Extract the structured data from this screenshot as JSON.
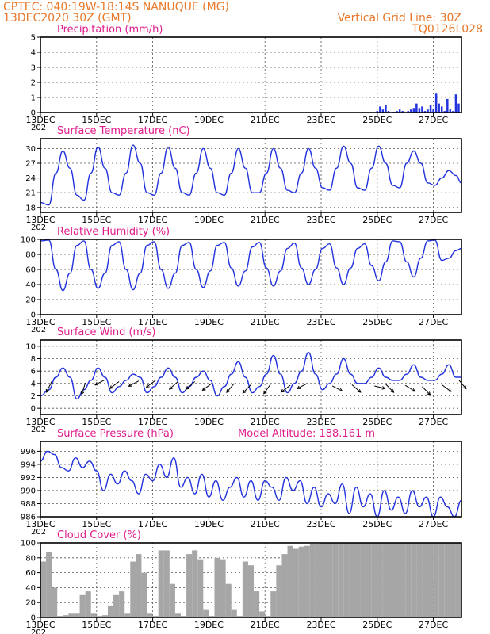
{
  "header": {
    "line1": "CPTEC:   040:19W-18:14S   NANUQUE (MG)",
    "line2": "13DEC2020 30Z (GMT)",
    "vgrid_label": "Vertical Grid Line: 30Z",
    "code": "TQ0126L028"
  },
  "x_ticks": [
    "13DEC",
    "15DEC",
    "17DEC",
    "19DEC",
    "21DEC",
    "23DEC",
    "25DEC",
    "27DEC"
  ],
  "x_tick_positions_days": [
    0,
    2,
    4,
    6,
    8,
    10,
    12,
    14
  ],
  "x_range_days": [
    0,
    15
  ],
  "year_fragment": "202",
  "colors": {
    "line": "#2233dd",
    "bar": "#2233dd",
    "cloud": "#a6a6a6",
    "title": "#e01c8c",
    "header": "#e8792b"
  },
  "chart_data": [
    {
      "type": "bar",
      "title": "Precipitation (mm/h)",
      "ylim": [
        0,
        5
      ],
      "yticks": [
        "0",
        "1",
        "2",
        "3",
        "4",
        "5"
      ],
      "x_days": [
        12.0,
        12.1,
        12.2,
        12.3,
        12.4,
        12.5,
        12.6,
        12.7,
        12.8,
        12.9,
        13.0,
        13.1,
        13.2,
        13.3,
        13.4,
        13.5,
        13.6,
        13.7,
        13.8,
        13.9,
        14.0,
        14.1,
        14.2,
        14.3,
        14.4,
        14.5,
        14.6,
        14.7,
        14.8,
        14.9
      ],
      "values": [
        0.1,
        0.4,
        0.2,
        0.5,
        0.1,
        0.0,
        0.05,
        0.1,
        0.2,
        0.1,
        0.0,
        0.1,
        0.2,
        0.3,
        0.6,
        0.3,
        0.4,
        0.1,
        0.2,
        0.5,
        0.2,
        1.3,
        0.6,
        0.4,
        0.1,
        0.9,
        0.2,
        0.1,
        1.2,
        0.6
      ]
    },
    {
      "type": "line",
      "title": "Surface Temperature (nC)",
      "ylim": [
        17,
        32
      ],
      "yticks": [
        "18",
        "21",
        "24",
        "27",
        "30"
      ],
      "x_days": [
        0,
        0.3,
        0.55,
        0.8,
        1.05,
        1.3,
        1.55,
        1.8,
        2.05,
        2.3,
        2.55,
        2.8,
        3.05,
        3.3,
        3.55,
        3.8,
        4.05,
        4.3,
        4.55,
        4.8,
        5.05,
        5.3,
        5.55,
        5.8,
        6.05,
        6.3,
        6.55,
        6.8,
        7.05,
        7.3,
        7.55,
        7.8,
        8.05,
        8.3,
        8.55,
        8.8,
        9.05,
        9.3,
        9.55,
        9.8,
        10.05,
        10.3,
        10.55,
        10.8,
        11.05,
        11.3,
        11.55,
        11.8,
        12.05,
        12.3,
        12.55,
        12.8,
        13.05,
        13.3,
        13.55,
        13.8,
        14.05,
        14.3,
        14.55,
        14.8,
        15
      ],
      "series": [
        {
          "values": [
            19,
            18.5,
            25,
            29.5,
            26,
            20.5,
            19.5,
            25,
            30.3,
            26,
            21,
            20.5,
            25,
            30.7,
            27,
            21,
            20.5,
            25,
            30.3,
            26,
            21,
            20.5,
            25,
            30,
            26,
            21,
            20.5,
            25,
            30,
            26,
            21,
            21,
            25,
            30,
            26,
            21.5,
            21,
            25,
            30,
            26,
            22,
            21.5,
            26,
            30.5,
            27,
            22,
            21.5,
            26,
            30.5,
            27,
            22.5,
            22,
            27,
            29.5,
            27,
            23,
            22.5,
            24,
            25.5,
            24.5,
            23
          ]
        }
      ]
    },
    {
      "type": "line",
      "title": "Relative Humidity (%)",
      "ylim": [
        0,
        100
      ],
      "yticks": [
        "0",
        "20",
        "40",
        "60",
        "80",
        "100"
      ],
      "x_days": [
        0,
        0.3,
        0.55,
        0.8,
        1.05,
        1.3,
        1.55,
        1.8,
        2.05,
        2.3,
        2.55,
        2.8,
        3.05,
        3.3,
        3.55,
        3.8,
        4.05,
        4.3,
        4.55,
        4.8,
        5.05,
        5.3,
        5.55,
        5.8,
        6.05,
        6.3,
        6.55,
        6.8,
        7.05,
        7.3,
        7.55,
        7.8,
        8.05,
        8.3,
        8.55,
        8.8,
        9.05,
        9.3,
        9.55,
        9.8,
        10.05,
        10.3,
        10.55,
        10.8,
        11.05,
        11.3,
        11.55,
        11.8,
        12.05,
        12.3,
        12.55,
        12.8,
        13.05,
        13.3,
        13.55,
        13.8,
        14.05,
        14.3,
        14.55,
        14.8,
        15
      ],
      "series": [
        {
          "values": [
            98,
            99,
            60,
            32,
            55,
            92,
            98,
            60,
            35,
            55,
            92,
            97,
            60,
            33,
            55,
            92,
            97,
            60,
            35,
            55,
            92,
            96,
            60,
            36,
            58,
            92,
            96,
            62,
            38,
            58,
            90,
            96,
            62,
            38,
            58,
            88,
            95,
            62,
            40,
            60,
            88,
            94,
            62,
            40,
            62,
            88,
            94,
            65,
            45,
            70,
            98,
            97,
            70,
            50,
            75,
            98,
            99,
            72,
            75,
            85,
            88
          ]
        }
      ]
    },
    {
      "type": "line",
      "title": "Surface Wind (m/s)",
      "ylim": [
        -1,
        11
      ],
      "yticks": [
        "0",
        "2",
        "4",
        "6",
        "8",
        "10"
      ],
      "x_days": [
        0,
        0.3,
        0.55,
        0.8,
        1.05,
        1.3,
        1.55,
        1.8,
        2.05,
        2.3,
        2.55,
        2.8,
        3.05,
        3.3,
        3.55,
        3.8,
        4.05,
        4.3,
        4.55,
        4.8,
        5.05,
        5.3,
        5.55,
        5.8,
        6.05,
        6.3,
        6.55,
        6.8,
        7.05,
        7.3,
        7.55,
        7.8,
        8.05,
        8.3,
        8.55,
        8.8,
        9.05,
        9.3,
        9.55,
        9.8,
        10.05,
        10.3,
        10.55,
        10.8,
        11.05,
        11.3,
        11.55,
        11.8,
        12.05,
        12.3,
        12.55,
        12.8,
        13.05,
        13.3,
        13.55,
        13.8,
        14.05,
        14.3,
        14.55,
        14.8,
        15
      ],
      "series": [
        {
          "values": [
            2,
            3,
            5,
            6.5,
            5,
            1.5,
            3,
            4.5,
            6.5,
            5,
            2.5,
            3.5,
            4.5,
            5.5,
            5,
            2.5,
            3.5,
            5,
            6.5,
            5,
            2.5,
            3.5,
            5,
            6,
            4.5,
            2,
            3.5,
            5.5,
            7.5,
            5,
            2.5,
            3.5,
            5.5,
            8.5,
            5.5,
            2.5,
            4,
            6,
            9,
            5.5,
            3,
            4,
            5.5,
            8,
            5.5,
            4,
            4,
            5,
            6.5,
            5,
            4.5,
            4.5,
            5.5,
            7,
            5,
            4.5,
            4.5,
            5.5,
            7,
            5,
            5
          ]
        }
      ],
      "arrows": [
        {
          "day": 0.4,
          "speed": 4.3,
          "dir": 60
        },
        {
          "day": 1.6,
          "speed": 4.1,
          "dir": 70
        },
        {
          "day": 2.3,
          "speed": 4.6,
          "dir": 20
        },
        {
          "day": 2.8,
          "speed": 4.3,
          "dir": 30
        },
        {
          "day": 3.5,
          "speed": 4.4,
          "dir": 20
        },
        {
          "day": 4.1,
          "speed": 4.5,
          "dir": 30
        },
        {
          "day": 4.9,
          "speed": 4.3,
          "dir": 35
        },
        {
          "day": 5.5,
          "speed": 4.3,
          "dir": 35
        },
        {
          "day": 6.1,
          "speed": 4.0,
          "dir": 30
        },
        {
          "day": 6.9,
          "speed": 4.0,
          "dir": 45
        },
        {
          "day": 7.5,
          "speed": 3.8,
          "dir": 40
        },
        {
          "day": 8.2,
          "speed": 3.9,
          "dir": 50
        },
        {
          "day": 8.9,
          "speed": 3.7,
          "dir": 30
        },
        {
          "day": 9.5,
          "speed": 4.0,
          "dir": 20
        },
        {
          "day": 10.4,
          "speed": 3.6,
          "dir": -20
        },
        {
          "day": 11.1,
          "speed": 3.8,
          "dir": -35
        },
        {
          "day": 11.9,
          "speed": 3.6,
          "dir": -5
        },
        {
          "day": 12.3,
          "speed": 3.9,
          "dir": -40
        },
        {
          "day": 13.0,
          "speed": 3.7,
          "dir": -25
        },
        {
          "day": 13.6,
          "speed": 3.5,
          "dir": -40
        },
        {
          "day": 14.3,
          "speed": 3.8,
          "dir": -30
        },
        {
          "day": 14.9,
          "speed": 4.6,
          "dir": -45
        }
      ]
    },
    {
      "type": "line",
      "title": "Surface Pressure (hPa)",
      "subtitle": "Model Altitude: 188.161  m",
      "ylim": [
        986,
        997.5
      ],
      "yticks": [
        "986",
        "988",
        "990",
        "992",
        "994",
        "996"
      ],
      "x_days": [
        0,
        0.25,
        0.5,
        0.75,
        1.0,
        1.25,
        1.5,
        1.75,
        2.0,
        2.25,
        2.5,
        2.75,
        3.0,
        3.25,
        3.5,
        3.75,
        4.0,
        4.25,
        4.5,
        4.75,
        5.0,
        5.25,
        5.5,
        5.75,
        6.0,
        6.25,
        6.5,
        6.75,
        7.0,
        7.25,
        7.5,
        7.75,
        8.0,
        8.25,
        8.5,
        8.75,
        9.0,
        9.25,
        9.5,
        9.75,
        10.0,
        10.25,
        10.5,
        10.75,
        11.0,
        11.25,
        11.5,
        11.75,
        12.0,
        12.25,
        12.5,
        12.75,
        13.0,
        13.25,
        13.5,
        13.75,
        14.0,
        14.25,
        14.5,
        14.75,
        15
      ],
      "series": [
        {
          "values": [
            994.5,
            996,
            995.5,
            993.5,
            993,
            995,
            993.5,
            994.5,
            993,
            990,
            992.5,
            991,
            993,
            991.5,
            989.5,
            992.5,
            991.5,
            994,
            992,
            995,
            990.5,
            992,
            989.5,
            992.5,
            989,
            991.5,
            988.5,
            990.5,
            992,
            989,
            991.5,
            988.5,
            991.5,
            990.5,
            988.5,
            992,
            990,
            991.5,
            988,
            990.5,
            987.5,
            989.5,
            988,
            991,
            986.5,
            990.5,
            987.5,
            989.5,
            986,
            990,
            987,
            989,
            986.5,
            990,
            987.5,
            989,
            986,
            989,
            987.5,
            986,
            988.5
          ]
        }
      ]
    },
    {
      "type": "bar",
      "title": "Cloud Cover (%)",
      "ylim": [
        0,
        100
      ],
      "yticks": [
        "0",
        "20",
        "40",
        "60",
        "80",
        "100"
      ],
      "x_days": [
        0.1,
        0.3,
        0.5,
        0.7,
        0.9,
        1.1,
        1.3,
        1.5,
        1.7,
        1.9,
        2.1,
        2.3,
        2.5,
        2.7,
        2.9,
        3.1,
        3.3,
        3.5,
        3.7,
        3.9,
        4.1,
        4.3,
        4.5,
        4.7,
        4.9,
        5.1,
        5.3,
        5.5,
        5.7,
        5.9,
        6.1,
        6.3,
        6.5,
        6.7,
        6.9,
        7.1,
        7.3,
        7.5,
        7.7,
        7.9,
        8.1,
        8.3,
        8.5,
        8.7,
        8.9,
        9.1,
        9.3,
        9.5,
        9.7,
        9.9,
        10.1,
        10.3,
        10.5,
        10.7,
        10.9,
        11.1,
        11.3,
        11.5,
        11.7,
        11.9,
        12.1,
        12.3,
        12.5,
        12.7,
        12.9,
        13.1,
        13.3,
        13.5,
        13.7,
        13.9,
        14.1,
        14.3,
        14.5,
        14.7,
        14.9
      ],
      "values": [
        75,
        88,
        40,
        2,
        3,
        5,
        5,
        30,
        35,
        5,
        2,
        3,
        15,
        30,
        35,
        5,
        75,
        85,
        60,
        5,
        2,
        90,
        90,
        45,
        5,
        2,
        85,
        90,
        78,
        10,
        2,
        80,
        78,
        45,
        10,
        2,
        75,
        70,
        35,
        8,
        2,
        35,
        70,
        85,
        96,
        92,
        95,
        96,
        98,
        98,
        100,
        100,
        100,
        100,
        100,
        100,
        100,
        100,
        100,
        100,
        100,
        100,
        100,
        100,
        100,
        100,
        100,
        100,
        100,
        100,
        100,
        100,
        100,
        100,
        100
      ]
    }
  ]
}
